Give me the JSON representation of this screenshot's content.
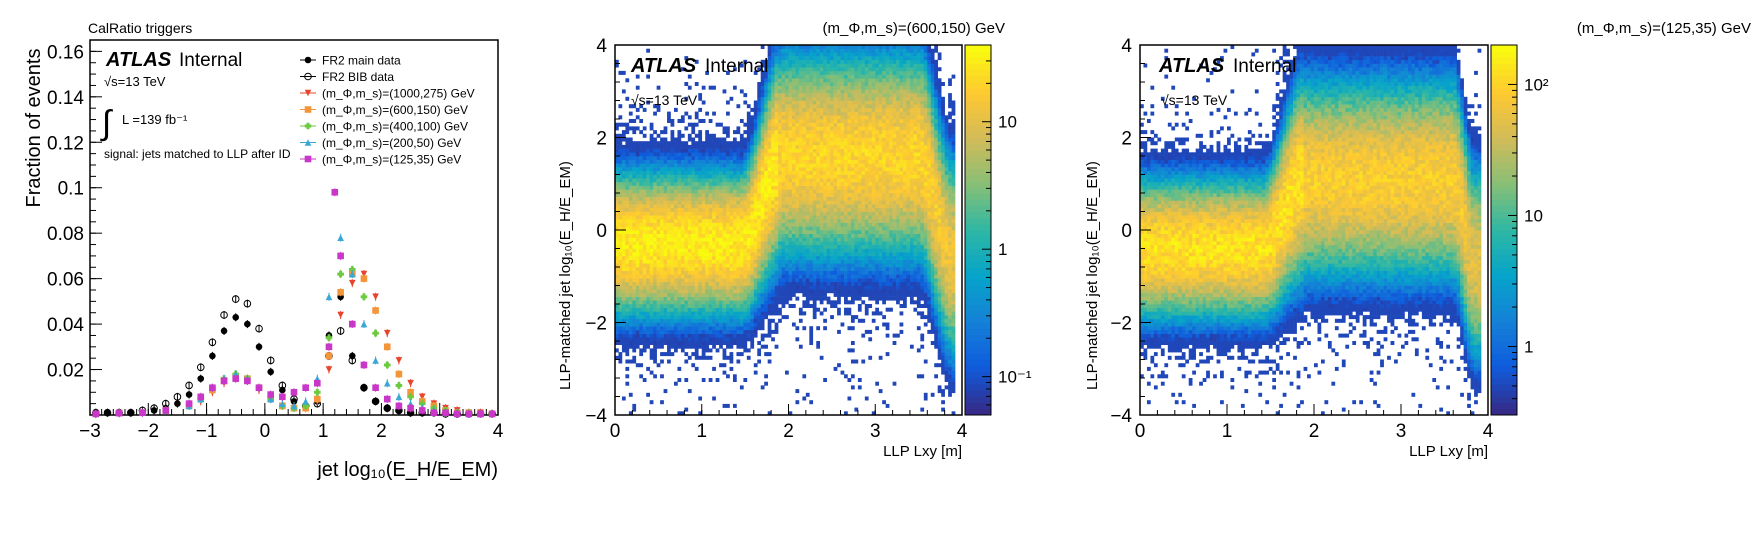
{
  "chart_data": [
    {
      "type": "scatter",
      "top_label": "CalRatio triggers",
      "atlas_label": "ATLAS",
      "internal_label": "Internal",
      "energy_label": "√s=13 TeV",
      "lumi_label": "L =139 fb⁻¹",
      "selection_note": "signal: jets matched to LLP after ID",
      "xlabel": "jet log₁₀(E_H/E_EM)",
      "ylabel": "Fraction of events",
      "xlim": [
        -3,
        4
      ],
      "ylim": [
        0,
        0.165
      ],
      "x_ticks": [
        -3,
        -2,
        -1,
        0,
        1,
        2,
        3,
        4
      ],
      "x_tick_labels": [
        "−3",
        "−2",
        "−1",
        "0",
        "1",
        "2",
        "3",
        "4"
      ],
      "y_ticks": [
        0.02,
        0.04,
        0.06,
        0.08,
        0.1,
        0.12,
        0.14,
        0.16
      ],
      "y_tick_labels": [
        "0.02",
        "0.04",
        "0.06",
        "0.08",
        "0.1",
        "0.12",
        "0.14",
        "0.16"
      ],
      "legend_position": "top-right",
      "series": [
        {
          "name": "FR2 main data",
          "color": "#000000",
          "marker": "filled-circle",
          "x": [
            -2.9,
            -2.7,
            -2.5,
            -2.3,
            -2.1,
            -1.9,
            -1.7,
            -1.5,
            -1.3,
            -1.1,
            -0.9,
            -0.7,
            -0.5,
            -0.3,
            -0.1,
            0.1,
            0.3,
            0.5,
            0.7,
            0.9,
            1.1,
            1.3,
            1.5,
            1.7,
            1.9,
            2.1,
            2.3,
            2.5,
            2.7,
            2.9,
            3.1,
            3.3,
            3.5,
            3.7,
            3.9
          ],
          "y": [
            0.001,
            0.001,
            0.001,
            0.001,
            0.001,
            0.002,
            0.003,
            0.005,
            0.009,
            0.016,
            0.026,
            0.037,
            0.043,
            0.04,
            0.03,
            0.019,
            0.011,
            0.006,
            0.004,
            0.006,
            0.035,
            0.052,
            0.026,
            0.012,
            0.006,
            0.003,
            0.002,
            0.001,
            0.001,
            0.001,
            0.001,
            0.0005,
            0.0005,
            0.0005,
            0.0005
          ]
        },
        {
          "name": "FR2 BIB data",
          "color": "#000000",
          "marker": "open-circle",
          "x": [
            -2.9,
            -2.7,
            -2.5,
            -2.3,
            -2.1,
            -1.9,
            -1.7,
            -1.5,
            -1.3,
            -1.1,
            -0.9,
            -0.7,
            -0.5,
            -0.3,
            -0.1,
            0.1,
            0.3,
            0.5,
            0.7,
            0.9,
            1.1,
            1.3,
            1.5,
            1.7,
            1.9,
            2.1,
            2.3,
            2.5,
            2.7,
            2.9,
            3.1,
            3.3,
            3.5,
            3.7,
            3.9
          ],
          "y": [
            0.001,
            0.001,
            0.001,
            0.001,
            0.002,
            0.003,
            0.005,
            0.008,
            0.013,
            0.021,
            0.032,
            0.044,
            0.051,
            0.049,
            0.038,
            0.024,
            0.013,
            0.007,
            0.004,
            0.005,
            0.026,
            0.037,
            0.024,
            0.012,
            0.006,
            0.003,
            0.002,
            0.001,
            0.001,
            0.001,
            0.0005,
            0.0005,
            0.0005,
            0.0005,
            0.0005
          ]
        },
        {
          "name": "(m_Φ,m_s)=(1000,275) GeV",
          "color": "#e8432c",
          "marker": "triangle-down",
          "x": [
            -2.9,
            -2.5,
            -2.1,
            -1.7,
            -1.3,
            -1.1,
            -0.9,
            -0.7,
            -0.5,
            -0.3,
            -0.1,
            0.1,
            0.3,
            0.5,
            0.7,
            0.9,
            1.1,
            1.3,
            1.5,
            1.7,
            1.9,
            2.1,
            2.3,
            2.5,
            2.7,
            2.9,
            3.1,
            3.3,
            3.5,
            3.7,
            3.9
          ],
          "y": [
            0.0005,
            0.0008,
            0.001,
            0.002,
            0.004,
            0.006,
            0.01,
            0.014,
            0.016,
            0.015,
            0.011,
            0.007,
            0.004,
            0.003,
            0.003,
            0.006,
            0.02,
            0.044,
            0.058,
            0.062,
            0.052,
            0.036,
            0.024,
            0.014,
            0.008,
            0.005,
            0.003,
            0.002,
            0.001,
            0.001,
            0.0005
          ]
        },
        {
          "name": "(m_Φ,m_s)=(600,150) GeV",
          "color": "#f5953a",
          "marker": "square",
          "x": [
            -2.9,
            -2.5,
            -2.1,
            -1.7,
            -1.3,
            -1.1,
            -0.9,
            -0.7,
            -0.5,
            -0.3,
            -0.1,
            0.1,
            0.3,
            0.5,
            0.7,
            0.9,
            1.1,
            1.3,
            1.5,
            1.7,
            1.9,
            2.1,
            2.3,
            2.5,
            2.7,
            2.9,
            3.1,
            3.3,
            3.5,
            3.7,
            3.9
          ],
          "y": [
            0.0005,
            0.0008,
            0.001,
            0.002,
            0.004,
            0.007,
            0.011,
            0.015,
            0.017,
            0.016,
            0.012,
            0.007,
            0.004,
            0.003,
            0.003,
            0.007,
            0.026,
            0.054,
            0.062,
            0.06,
            0.046,
            0.03,
            0.018,
            0.01,
            0.006,
            0.004,
            0.002,
            0.001,
            0.001,
            0.0005,
            0.0005
          ]
        },
        {
          "name": "(m_Φ,m_s)=(400,100) GeV",
          "color": "#6cc940",
          "marker": "cross",
          "x": [
            -2.9,
            -2.5,
            -2.1,
            -1.7,
            -1.3,
            -1.1,
            -0.9,
            -0.7,
            -0.5,
            -0.3,
            -0.1,
            0.1,
            0.3,
            0.5,
            0.7,
            0.9,
            1.1,
            1.3,
            1.5,
            1.7,
            1.9,
            2.1,
            2.3,
            2.5,
            2.7,
            2.9,
            3.1,
            3.3,
            3.5,
            3.7,
            3.9
          ],
          "y": [
            0.0005,
            0.0008,
            0.001,
            0.002,
            0.004,
            0.007,
            0.012,
            0.016,
            0.018,
            0.016,
            0.012,
            0.007,
            0.004,
            0.003,
            0.004,
            0.01,
            0.034,
            0.062,
            0.064,
            0.052,
            0.036,
            0.022,
            0.013,
            0.008,
            0.005,
            0.003,
            0.002,
            0.001,
            0.001,
            0.0005,
            0.0005
          ]
        },
        {
          "name": "(m_Φ,m_s)=(200,50) GeV",
          "color": "#3aa7d6",
          "marker": "triangle-up",
          "x": [
            -2.9,
            -2.5,
            -2.1,
            -1.7,
            -1.3,
            -1.1,
            -0.9,
            -0.7,
            -0.5,
            -0.3,
            -0.1,
            0.1,
            0.3,
            0.5,
            0.7,
            0.9,
            1.1,
            1.3,
            1.5,
            1.7,
            1.9,
            2.1,
            2.3,
            2.5,
            2.7,
            2.9,
            3.1,
            3.3,
            3.5,
            3.7,
            3.9
          ],
          "y": [
            0.0005,
            0.0008,
            0.001,
            0.002,
            0.004,
            0.007,
            0.012,
            0.016,
            0.018,
            0.016,
            0.012,
            0.007,
            0.005,
            0.004,
            0.006,
            0.016,
            0.052,
            0.078,
            0.062,
            0.04,
            0.024,
            0.014,
            0.008,
            0.005,
            0.003,
            0.002,
            0.001,
            0.001,
            0.0005,
            0.0005,
            0.0005
          ]
        },
        {
          "name": "(m_Φ,m_s)=(125,35) GeV",
          "color": "#c837c8",
          "marker": "square",
          "x": [
            -2.9,
            -2.5,
            -2.1,
            -1.7,
            -1.3,
            -1.1,
            -0.9,
            -0.7,
            -0.5,
            -0.3,
            -0.1,
            0.1,
            0.3,
            0.5,
            0.7,
            0.9,
            1.1,
            1.2,
            1.3,
            1.5,
            1.7,
            1.9,
            2.1,
            2.3,
            2.5,
            2.7,
            2.9,
            3.1,
            3.3,
            3.5,
            3.7,
            3.9
          ],
          "y": [
            0.0005,
            0.0008,
            0.001,
            0.002,
            0.005,
            0.008,
            0.012,
            0.015,
            0.016,
            0.015,
            0.012,
            0.009,
            0.008,
            0.01,
            0.012,
            0.014,
            0.03,
            0.098,
            0.07,
            0.04,
            0.022,
            0.012,
            0.007,
            0.004,
            0.003,
            0.002,
            0.001,
            0.001,
            0.0005,
            0.0005,
            0.0005,
            0.0005
          ]
        }
      ]
    },
    {
      "type": "heatmap",
      "title": "(m_Φ,m_s)=(600,150) GeV",
      "atlas_label": "ATLAS",
      "internal_label": "Internal",
      "energy_label": "√s=13 TeV",
      "xlabel": "LLP Lxy [m]",
      "ylabel": "LLP-matched jet log₁₀(E_H/E_EM)",
      "xlim": [
        0,
        4
      ],
      "ylim": [
        -4,
        4
      ],
      "x_ticks": [
        0,
        1,
        2,
        3,
        4
      ],
      "x_tick_labels": [
        "0",
        "1",
        "2",
        "3",
        "4"
      ],
      "y_ticks": [
        -4,
        -2,
        0,
        2,
        4
      ],
      "y_tick_labels": [
        "−4",
        "−2",
        "0",
        "2",
        "4"
      ],
      "z_scale": "log",
      "zlim": [
        0.05,
        40
      ],
      "z_ticks": [
        0.1,
        1,
        10
      ],
      "z_tick_labels": [
        "10⁻¹",
        "1",
        "10"
      ],
      "palette": [
        "#352a87",
        "#0f5cdd",
        "#1481d6",
        "#06a4ca",
        "#2eb7a4",
        "#87bf77",
        "#d1bb59",
        "#fec832",
        "#f9fb0e"
      ],
      "density_model": {
        "description": "ridge from ~-0.3 at Lxy<1.4 rising to ~1.6 at Lxy~1.9, flat to ~3.5, then falling",
        "low_level": -0.3,
        "high_level": 1.6,
        "transition_start": 1.45,
        "transition_end": 1.95,
        "drop_start": 3.5,
        "drop_end": 3.9,
        "peak_count": 35
      }
    },
    {
      "type": "heatmap",
      "title": "(m_Φ,m_s)=(125,35) GeV",
      "atlas_label": "ATLAS",
      "internal_label": "Internal",
      "energy_label": "√s=13 TeV",
      "xlabel": "LLP Lxy [m]",
      "ylabel": "LLP-matched jet log₁₀(E_H/E_EM)",
      "xlim": [
        0,
        4
      ],
      "ylim": [
        -4,
        4
      ],
      "x_ticks": [
        0,
        1,
        2,
        3,
        4
      ],
      "x_tick_labels": [
        "0",
        "1",
        "2",
        "3",
        "4"
      ],
      "y_ticks": [
        -4,
        -2,
        0,
        2,
        4
      ],
      "y_tick_labels": [
        "−4",
        "−2",
        "0",
        "2",
        "4"
      ],
      "z_scale": "log",
      "zlim": [
        0.3,
        200
      ],
      "z_ticks": [
        1,
        10,
        100
      ],
      "z_tick_labels": [
        "1",
        "10",
        "10²"
      ],
      "palette": [
        "#352a87",
        "#0f5cdd",
        "#1481d6",
        "#06a4ca",
        "#2eb7a4",
        "#87bf77",
        "#d1bb59",
        "#fec832",
        "#f9fb0e"
      ],
      "density_model": {
        "description": "ridge from ~-0.4 at Lxy<1.4 rising to ~1.1 at Lxy~1.9, flat to ~3.6, then falling",
        "low_level": -0.4,
        "high_level": 1.1,
        "transition_start": 1.4,
        "transition_end": 1.9,
        "drop_start": 3.6,
        "drop_end": 3.85,
        "peak_count": 150
      }
    }
  ]
}
